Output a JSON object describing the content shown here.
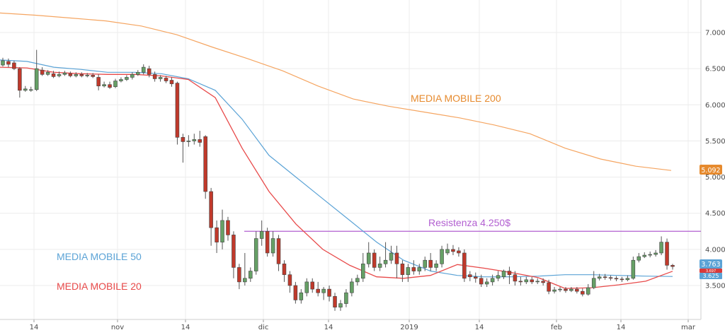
{
  "chart_data": {
    "type": "candlestick",
    "title": "",
    "ylim": [
      3200,
      7350
    ],
    "y_ticks": [
      3500,
      4000,
      4500,
      5000,
      5500,
      6000,
      6500,
      7000
    ],
    "y_tick_labels": [
      "3.500",
      "4.000",
      "4.500",
      "5.000",
      "5.500",
      "6.000",
      "6.500",
      "7.000"
    ],
    "x_tick_labels": [
      "14",
      "nov",
      "14",
      "dic",
      "14",
      "2019",
      "14",
      "feb",
      "14",
      "mar"
    ],
    "grid": true,
    "colors": {
      "up": "#66a066",
      "down": "#c0392b",
      "ma20": "#e84a4a",
      "ma50": "#5ba3d6",
      "ma200": "#f5a561",
      "resistance": "#b25fd1",
      "badge_ma200": "#e68a2e",
      "badge_ma50": "#5ba3d6",
      "badge_ma20": "#d93a3a"
    },
    "annotations": {
      "ma200_label": "MEDIA MOBILE 200",
      "ma50_label": "MEDIA MOBILE 50",
      "ma20_label": "MEDIA MOBILE 20",
      "resistance_label": "Resistenza 4.250$"
    },
    "resistance_level": 4250,
    "last_values": {
      "ma200": "5.092",
      "ma50": "3.625",
      "ma20": "3.697",
      "close": "3.763"
    },
    "ma200": [
      7270,
      7240,
      7200,
      7160,
      7090,
      6970,
      6800,
      6640,
      6470,
      6260,
      6080,
      5980,
      5900,
      5820,
      5720,
      5600,
      5400,
      5250,
      5150,
      5092
    ],
    "ma50": [
      6620,
      6600,
      6520,
      6490,
      6450,
      6450,
      6430,
      6360,
      6200,
      5800,
      5300,
      5000,
      4700,
      4400,
      4100,
      3850,
      3700,
      3640,
      3620,
      3620,
      3630,
      3650,
      3650,
      3640,
      3630,
      3625
    ],
    "ma20": [
      6520,
      6510,
      6450,
      6430,
      6420,
      6420,
      6400,
      6350,
      6100,
      5400,
      4800,
      4350,
      4000,
      3780,
      3620,
      3600,
      3640,
      3790,
      3740,
      3680,
      3610,
      3460,
      3470,
      3510,
      3560,
      3697
    ],
    "candles": [
      [
        6550,
        6610,
        6650,
        6530
      ],
      [
        6600,
        6560,
        6640,
        6520
      ],
      [
        6580,
        6500,
        6610,
        6480
      ],
      [
        6500,
        6200,
        6520,
        6100
      ],
      [
        6200,
        6220,
        6260,
        6180
      ],
      [
        6200,
        6210,
        6250,
        6180
      ],
      [
        6210,
        6500,
        6760,
        6190
      ],
      [
        6480,
        6420,
        6520,
        6400
      ],
      [
        6420,
        6450,
        6480,
        6400
      ],
      [
        6430,
        6390,
        6470,
        6370
      ],
      [
        6400,
        6420,
        6460,
        6380
      ],
      [
        6420,
        6440,
        6470,
        6400
      ],
      [
        6430,
        6400,
        6460,
        6380
      ],
      [
        6400,
        6420,
        6450,
        6380
      ],
      [
        6420,
        6400,
        6450,
        6380
      ],
      [
        6400,
        6410,
        6440,
        6380
      ],
      [
        6410,
        6390,
        6440,
        6370
      ],
      [
        6380,
        6260,
        6420,
        6200
      ],
      [
        6260,
        6280,
        6320,
        6240
      ],
      [
        6280,
        6240,
        6320,
        6220
      ],
      [
        6250,
        6330,
        6360,
        6230
      ],
      [
        6330,
        6350,
        6380,
        6310
      ],
      [
        6350,
        6380,
        6410,
        6330
      ],
      [
        6380,
        6420,
        6450,
        6350
      ],
      [
        6420,
        6450,
        6480,
        6400
      ],
      [
        6450,
        6520,
        6560,
        6420
      ],
      [
        6500,
        6420,
        6540,
        6380
      ],
      [
        6420,
        6360,
        6460,
        6320
      ],
      [
        6360,
        6380,
        6410,
        6320
      ],
      [
        6370,
        6330,
        6400,
        6300
      ],
      [
        6340,
        6290,
        6380,
        6250
      ],
      [
        6300,
        5550,
        6320,
        5450
      ],
      [
        5550,
        5490,
        5600,
        5200
      ],
      [
        5490,
        5500,
        5580,
        5420
      ],
      [
        5500,
        5520,
        5600,
        5450
      ],
      [
        5520,
        5480,
        5640,
        5420
      ],
      [
        5560,
        4800,
        5580,
        4700
      ],
      [
        4800,
        4300,
        4850,
        4050
      ],
      [
        4300,
        4100,
        4400,
        3950
      ],
      [
        4100,
        4400,
        4550,
        4000
      ],
      [
        4400,
        4200,
        4450,
        4120
      ],
      [
        4200,
        3750,
        4250,
        3600
      ],
      [
        3750,
        3550,
        3800,
        3450
      ],
      [
        3550,
        3600,
        3950,
        3500
      ],
      [
        3600,
        3700,
        3750,
        3550
      ],
      [
        3700,
        4150,
        4250,
        3650
      ],
      [
        4150,
        4250,
        4400,
        4050
      ],
      [
        4250,
        3950,
        4300,
        3900
      ],
      [
        3950,
        4150,
        4250,
        3900
      ],
      [
        4150,
        3800,
        4200,
        3700
      ],
      [
        3800,
        3650,
        3850,
        3550
      ],
      [
        3650,
        3500,
        3700,
        3400
      ],
      [
        3500,
        3300,
        3550,
        3250
      ],
      [
        3300,
        3400,
        3450,
        3250
      ],
      [
        3400,
        3550,
        3600,
        3350
      ],
      [
        3550,
        3450,
        3600,
        3400
      ],
      [
        3450,
        3400,
        3550,
        3350
      ],
      [
        3400,
        3450,
        3480,
        3300
      ],
      [
        3450,
        3350,
        3500,
        3280
      ],
      [
        3350,
        3200,
        3400,
        3150
      ],
      [
        3200,
        3250,
        3300,
        3150
      ],
      [
        3250,
        3400,
        3450,
        3200
      ],
      [
        3400,
        3550,
        3600,
        3350
      ],
      [
        3550,
        3600,
        3650,
        3500
      ],
      [
        3600,
        3800,
        3950,
        3550
      ],
      [
        3800,
        3950,
        4100,
        3750
      ],
      [
        3950,
        3750,
        4000,
        3700
      ],
      [
        3750,
        3800,
        3900,
        3700
      ],
      [
        3800,
        3850,
        4100,
        3750
      ],
      [
        3850,
        3950,
        4050,
        3800
      ],
      [
        3950,
        3800,
        4050,
        3600
      ],
      [
        3800,
        3650,
        3850,
        3550
      ],
      [
        3650,
        3750,
        3800,
        3550
      ],
      [
        3750,
        3700,
        3850,
        3650
      ],
      [
        3700,
        3750,
        3800,
        3650
      ],
      [
        3750,
        3850,
        3900,
        3700
      ],
      [
        3850,
        3750,
        3950,
        3700
      ],
      [
        3750,
        3800,
        3850,
        3700
      ],
      [
        3800,
        4000,
        4050,
        3750
      ],
      [
        3950,
        4000,
        4080,
        3920
      ],
      [
        4000,
        3970,
        4060,
        3920
      ],
      [
        3980,
        3950,
        4030,
        3900
      ],
      [
        3950,
        3600,
        4000,
        3550
      ],
      [
        3650,
        3620,
        3700,
        3560
      ],
      [
        3620,
        3600,
        3680,
        3540
      ],
      [
        3600,
        3520,
        3650,
        3480
      ],
      [
        3520,
        3550,
        3600,
        3480
      ],
      [
        3550,
        3600,
        3650,
        3500
      ],
      [
        3600,
        3640,
        3700,
        3560
      ],
      [
        3620,
        3700,
        3720,
        3590
      ],
      [
        3700,
        3650,
        3760,
        3520
      ],
      [
        3650,
        3560,
        3700,
        3500
      ],
      [
        3560,
        3550,
        3620,
        3500
      ],
      [
        3550,
        3580,
        3620,
        3520
      ],
      [
        3580,
        3550,
        3620,
        3520
      ],
      [
        3550,
        3560,
        3600,
        3520
      ],
      [
        3560,
        3540,
        3600,
        3500
      ],
      [
        3540,
        3420,
        3580,
        3380
      ],
      [
        3420,
        3440,
        3480,
        3390
      ],
      [
        3440,
        3450,
        3480,
        3410
      ],
      [
        3450,
        3430,
        3480,
        3400
      ],
      [
        3430,
        3450,
        3480,
        3410
      ],
      [
        3450,
        3420,
        3480,
        3390
      ],
      [
        3420,
        3380,
        3460,
        3350
      ],
      [
        3380,
        3470,
        3520,
        3360
      ],
      [
        3470,
        3600,
        3700,
        3450
      ],
      [
        3600,
        3620,
        3660,
        3570
      ],
      [
        3620,
        3610,
        3660,
        3580
      ],
      [
        3610,
        3600,
        3640,
        3570
      ],
      [
        3600,
        3590,
        3630,
        3560
      ],
      [
        3590,
        3580,
        3620,
        3550
      ],
      [
        3580,
        3600,
        3640,
        3560
      ],
      [
        3600,
        3850,
        3900,
        3580
      ],
      [
        3850,
        3900,
        3950,
        3820
      ],
      [
        3900,
        3920,
        3960,
        3880
      ],
      [
        3920,
        3930,
        3970,
        3890
      ],
      [
        3930,
        3950,
        3990,
        3900
      ],
      [
        3950,
        4100,
        4180,
        3920
      ],
      [
        4100,
        3780,
        4150,
        3720
      ],
      [
        3780,
        3763,
        3800,
        3720
      ]
    ]
  }
}
